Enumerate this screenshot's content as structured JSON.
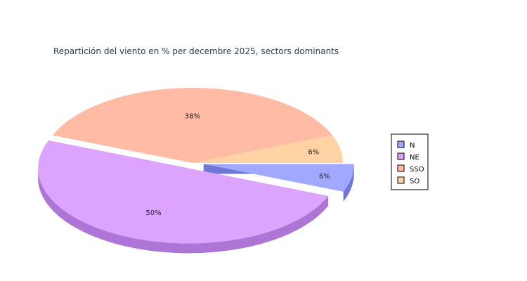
{
  "chart_data": {
    "type": "pie",
    "title": "Repartición del viento en % per decembre 2025, sectors dominants",
    "legend_position": "right",
    "slices": [
      {
        "name": "N",
        "value": 6,
        "label": "6%",
        "color": "#a0a8ff",
        "side": "#6f78d6",
        "exploded": true
      },
      {
        "name": "NE",
        "value": 50,
        "label": "50%",
        "color": "#dca4ff",
        "side": "#ad75d6",
        "exploded": true
      },
      {
        "name": "SSO",
        "value": 38,
        "label": "38%",
        "color": "#ffbba4",
        "side": "#d68c72",
        "exploded": false
      },
      {
        "name": "SO",
        "value": 6,
        "label": "6%",
        "color": "#ffd3a4",
        "side": "#d9a873",
        "exploded": false
      }
    ]
  }
}
